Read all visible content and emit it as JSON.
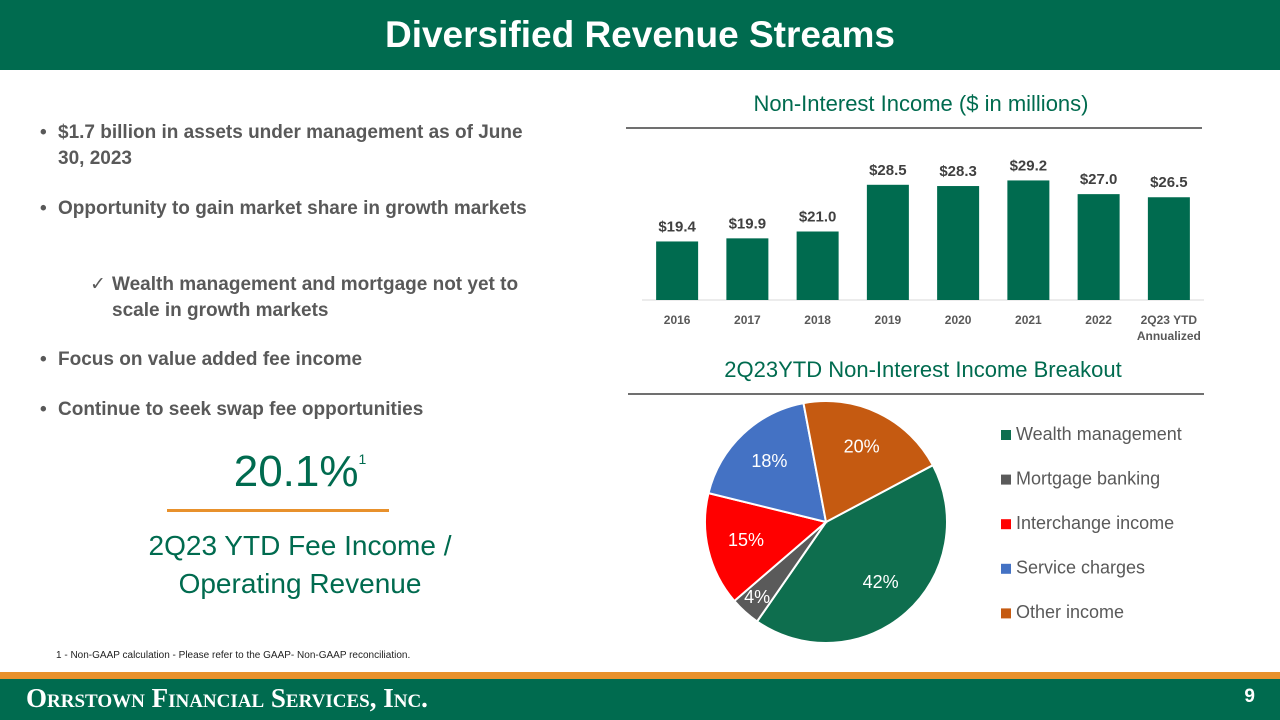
{
  "header": {
    "title": "Diversified Revenue Streams"
  },
  "bullets": [
    {
      "text": "$1.7 billion in assets under management as of June 30, 2023"
    },
    {
      "text": "Opportunity to gain market share in growth markets",
      "sub": [
        "Wealth management and mortgage not yet to scale in growth markets"
      ]
    },
    {
      "text": "Focus on value added fee income"
    },
    {
      "text": "Continue to seek swap fee opportunities"
    }
  ],
  "kpi": {
    "value": "20.1%",
    "note": "1",
    "label": "2Q23 YTD Fee Income / Operating Revenue"
  },
  "footnote": "1 - Non-GAAP calculation - Please refer to the GAAP- Non-GAAP reconciliation.",
  "footer": {
    "company": "Orrstown Financial Services, Inc.",
    "page": "9"
  },
  "chart_data": [
    {
      "type": "bar",
      "title": "Non-Interest Income ($ in millions)",
      "categories": [
        "2016",
        "2017",
        "2018",
        "2019",
        "2020",
        "2021",
        "2022",
        "2Q23 YTD Annualized"
      ],
      "values": [
        19.4,
        19.9,
        21.0,
        28.5,
        28.3,
        29.2,
        27.0,
        26.5
      ],
      "value_labels": [
        "$19.4",
        "$19.9",
        "$21.0",
        "$28.5",
        "$28.3",
        "$29.2",
        "$27.0",
        "$26.5"
      ],
      "color": "#006b4f",
      "ylim": [
        10,
        32
      ]
    },
    {
      "type": "pie",
      "title": "2Q23YTD  Non-Interest Income Breakout",
      "categories": [
        "Wealth management",
        "Mortgage banking",
        "Interchange income",
        "Service charges",
        "Other income"
      ],
      "values": [
        42,
        4,
        15,
        18,
        20
      ],
      "value_labels": [
        "42%",
        "4%",
        "15%",
        "18%",
        "20%"
      ],
      "colors": [
        "#0e6e4e",
        "#5a5a5a",
        "#ff0000",
        "#4472c4",
        "#c55a11"
      ],
      "legend": "right"
    }
  ]
}
